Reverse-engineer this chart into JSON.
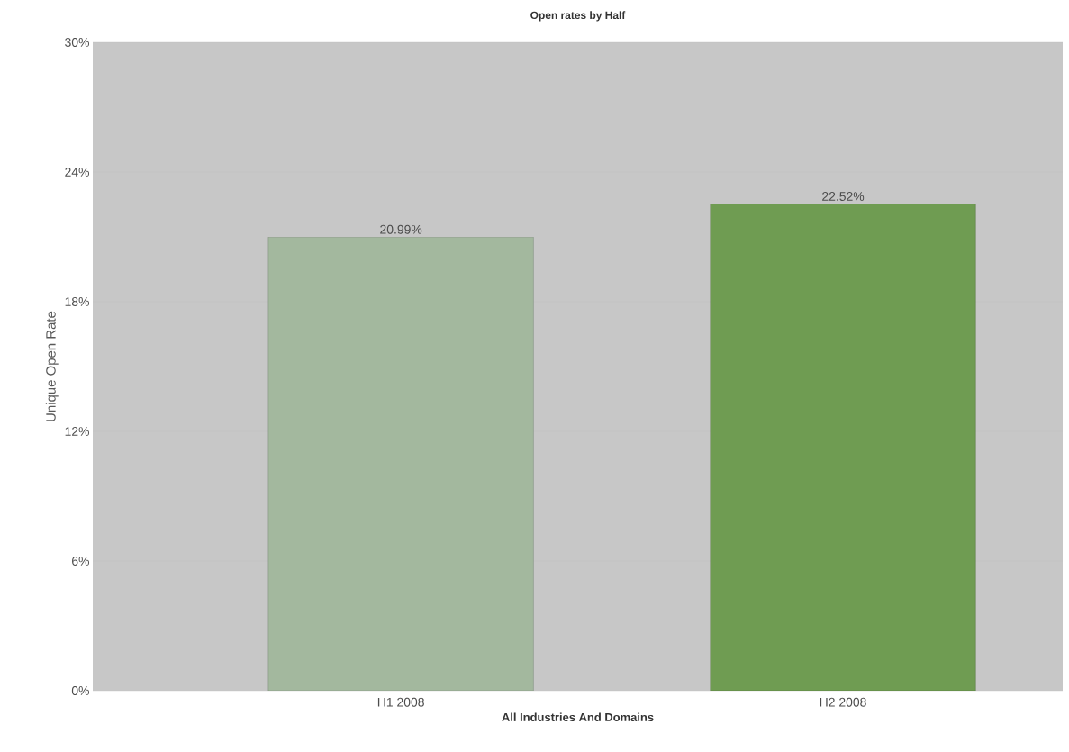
{
  "chart_data": {
    "type": "bar",
    "title": "Open rates by Half",
    "xlabel": "All Industries And Domains",
    "ylabel": "Unique Open Rate",
    "categories": [
      "H1 2008",
      "H2 2008"
    ],
    "values": [
      20.99,
      22.52
    ],
    "colors": [
      "#a3b89e",
      "#6f9c52"
    ],
    "value_labels": [
      "20.99%",
      "22.52%"
    ],
    "ylim": [
      0,
      30
    ],
    "yticks": [
      {
        "value": 0,
        "label": "0%"
      },
      {
        "value": 6,
        "label": "6%"
      },
      {
        "value": 12,
        "label": "12%"
      },
      {
        "value": 18,
        "label": "18%"
      },
      {
        "value": 24,
        "label": "24%"
      },
      {
        "value": 30,
        "label": "30%"
      }
    ],
    "grid": "y"
  }
}
